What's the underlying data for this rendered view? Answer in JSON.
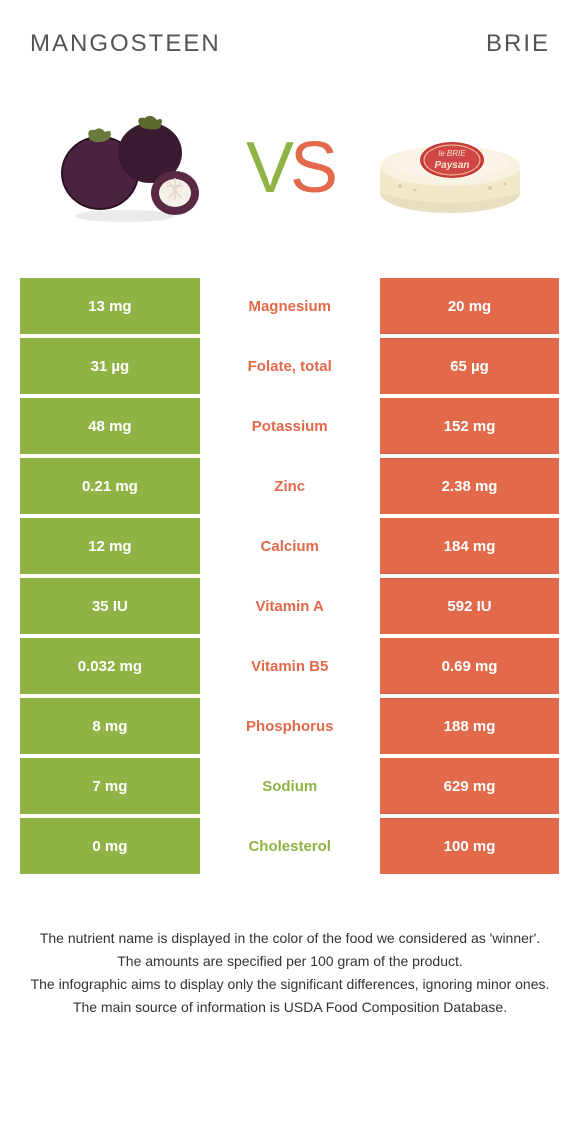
{
  "header": {
    "left_title": "Mangosteen",
    "right_title": "Brie",
    "vs_v": "V",
    "vs_s": "S"
  },
  "colors": {
    "left": "#8fb344",
    "right": "#e2694a",
    "left_bg": "#8fb344",
    "right_bg": "#e2694a"
  },
  "rows": [
    {
      "left": "13 mg",
      "label": "Magnesium",
      "right": "20 mg",
      "winner": "right"
    },
    {
      "left": "31 µg",
      "label": "Folate, total",
      "right": "65 µg",
      "winner": "right"
    },
    {
      "left": "48 mg",
      "label": "Potassium",
      "right": "152 mg",
      "winner": "right"
    },
    {
      "left": "0.21 mg",
      "label": "Zinc",
      "right": "2.38 mg",
      "winner": "right"
    },
    {
      "left": "12 mg",
      "label": "Calcium",
      "right": "184 mg",
      "winner": "right"
    },
    {
      "left": "35 IU",
      "label": "Vitamin A",
      "right": "592 IU",
      "winner": "right"
    },
    {
      "left": "0.032 mg",
      "label": "Vitamin B5",
      "right": "0.69 mg",
      "winner": "right"
    },
    {
      "left": "8 mg",
      "label": "Phosphorus",
      "right": "188 mg",
      "winner": "right"
    },
    {
      "left": "7 mg",
      "label": "Sodium",
      "right": "629 mg",
      "winner": "left"
    },
    {
      "left": "0 mg",
      "label": "Cholesterol",
      "right": "100 mg",
      "winner": "left"
    }
  ],
  "footnotes": [
    "The nutrient name is displayed in the color of the food we considered as 'winner'.",
    "The amounts are specified per 100 gram of the product.",
    "The infographic aims to display only the significant differences, ignoring minor ones.",
    "The main source of information is USDA Food Composition Database."
  ]
}
